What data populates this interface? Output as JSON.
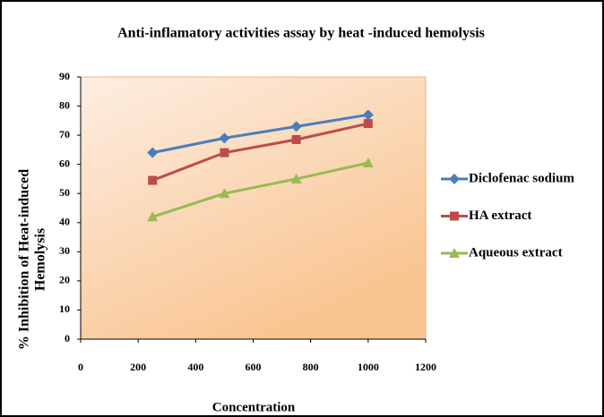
{
  "chart_data": {
    "type": "line",
    "title": "Anti-inflamatory  activities assay by  heat -induced hemolysis",
    "xlabel": "Concentration",
    "ylabel": [
      "% Inhibition of Heat-induced",
      "Hemolysis"
    ],
    "x": [
      250,
      500,
      750,
      1000
    ],
    "series": [
      {
        "name": "Diclofenac sodium",
        "color": "#4a7ebb",
        "marker": "diamond",
        "values": [
          64,
          69,
          73,
          77
        ]
      },
      {
        "name": "HA extract",
        "color": "#be4b48",
        "marker": "square",
        "values": [
          54.5,
          64,
          68.5,
          74
        ]
      },
      {
        "name": "Aqueous extract",
        "color": "#98b954",
        "marker": "triangle",
        "values": [
          42,
          50,
          55,
          60.5
        ]
      }
    ],
    "xlim": [
      0,
      1200
    ],
    "xticks": [
      0,
      200,
      400,
      600,
      800,
      1000,
      1200
    ],
    "ylim": [
      0,
      90
    ],
    "yticks": [
      0,
      10,
      20,
      30,
      40,
      50,
      60,
      70,
      80,
      90
    ],
    "grid": false,
    "legend": "right"
  }
}
